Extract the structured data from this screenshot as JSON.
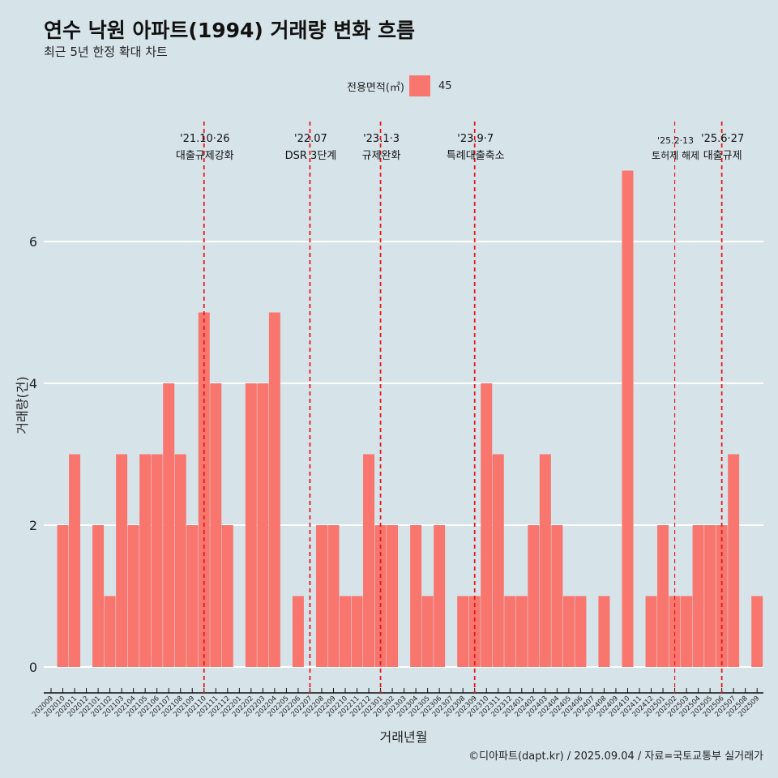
{
  "title": "연수 낙원 아파트(1994) 거래량 변화 흐름",
  "subtitle": "최근 5년 한정 확대 차트",
  "caption": "©디아파트(dapt.kr) / 2025.09.04 / 자료=국토교통부 실거래가",
  "chart_data": {
    "type": "bar",
    "xlabel": "거래년월",
    "ylabel": "거래량(건)",
    "legend": {
      "title": "전용면적(㎡)",
      "entries": [
        "45"
      ],
      "placement": "top"
    },
    "color": "#f8766d",
    "ylim": [
      -0.3,
      7.8
    ],
    "yticks": [
      0,
      2,
      4,
      6
    ],
    "categories": [
      "202009",
      "202010",
      "202011",
      "202012",
      "202101",
      "202102",
      "202103",
      "202104",
      "202105",
      "202106",
      "202107",
      "202108",
      "202109",
      "202110",
      "202111",
      "202112",
      "202201",
      "202202",
      "202203",
      "202204",
      "202205",
      "202206",
      "202207",
      "202208",
      "202209",
      "202210",
      "202211",
      "202212",
      "202301",
      "202302",
      "202303",
      "202304",
      "202305",
      "202306",
      "202307",
      "202308",
      "202309",
      "202310",
      "202311",
      "202312",
      "202401",
      "202402",
      "202403",
      "202404",
      "202405",
      "202406",
      "202407",
      "202408",
      "202409",
      "202410",
      "202411",
      "202412",
      "202501",
      "202502",
      "202503",
      "202504",
      "202505",
      "202506",
      "202507",
      "202508",
      "202509"
    ],
    "values": [
      0,
      2,
      3,
      0,
      2,
      1,
      3,
      2,
      3,
      3,
      4,
      3,
      2,
      5,
      4,
      2,
      0,
      4,
      4,
      5,
      0,
      1,
      0,
      2,
      2,
      1,
      1,
      3,
      2,
      2,
      0,
      2,
      1,
      2,
      0,
      1,
      1,
      4,
      3,
      1,
      1,
      2,
      3,
      2,
      1,
      1,
      0,
      1,
      0,
      7,
      0,
      1,
      2,
      1,
      1,
      2,
      2,
      2,
      3,
      0,
      1
    ],
    "annotations": [
      {
        "month": "202110",
        "date": "'21.10·26",
        "label": "대출규제강화"
      },
      {
        "month": "202207",
        "date": "'22.07",
        "label": "DSR 3단계"
      },
      {
        "month": "202301",
        "date": "'23.1·3",
        "label": "규제완화"
      },
      {
        "month": "202309",
        "date": "'23.9·7",
        "label": "특례대출축소"
      },
      {
        "month": "202502",
        "date": "'25.2·13",
        "label": "토허제 해제"
      },
      {
        "month": "202506",
        "date": "'25.6·27",
        "label": "대출규제"
      }
    ]
  }
}
